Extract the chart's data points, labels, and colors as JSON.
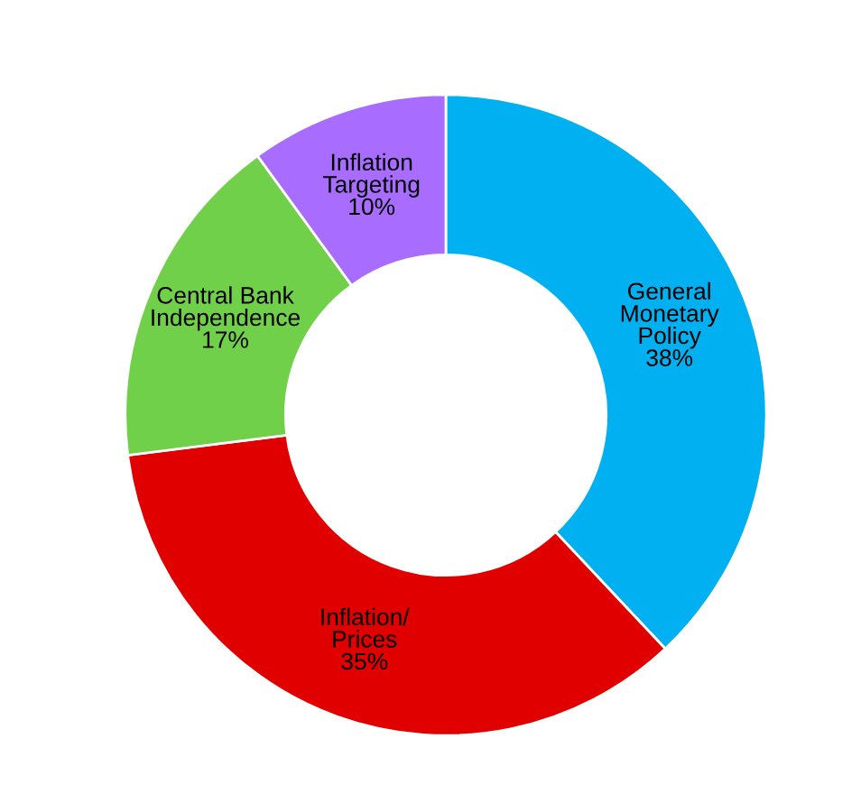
{
  "chart_data": {
    "type": "donut",
    "categories": [
      "General\nMonetary\nPolicy",
      "Inflation/\nPrices",
      "Central Bank\nIndependence",
      "Inflation\nTargeting"
    ],
    "values": [
      38,
      35,
      17,
      10
    ],
    "colors": [
      "#00b0f0",
      "#e00000",
      "#70d04a",
      "#a86cff"
    ],
    "value_labels": [
      "38%",
      "35%",
      "17%",
      "10%"
    ],
    "legend": false
  }
}
